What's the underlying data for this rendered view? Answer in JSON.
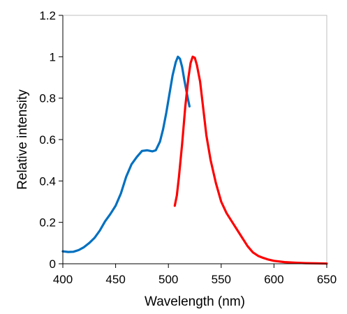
{
  "chart_data": {
    "type": "line",
    "title": "",
    "xlabel": "Wavelength (nm)",
    "ylabel": "Relative intensity",
    "xlim": [
      400,
      650
    ],
    "ylim": [
      0,
      1.2
    ],
    "xticks": [
      400,
      450,
      500,
      550,
      600,
      650
    ],
    "xtick_labels": [
      "400",
      "450",
      "500",
      "550",
      "600",
      "650"
    ],
    "yticks": [
      0,
      0.2,
      0.4,
      0.6,
      0.8,
      1.0,
      1.2
    ],
    "ytick_labels": [
      "0",
      "0.2",
      "0.4",
      "0.6",
      "0.8",
      "1",
      "1.2"
    ],
    "grid": false,
    "legend": "none",
    "series": [
      {
        "color": "#0070c0",
        "points": [
          [
            400,
            0.06
          ],
          [
            405,
            0.057
          ],
          [
            410,
            0.058
          ],
          [
            415,
            0.066
          ],
          [
            420,
            0.08
          ],
          [
            425,
            0.1
          ],
          [
            430,
            0.125
          ],
          [
            435,
            0.16
          ],
          [
            440,
            0.205
          ],
          [
            445,
            0.24
          ],
          [
            450,
            0.28
          ],
          [
            455,
            0.34
          ],
          [
            460,
            0.42
          ],
          [
            465,
            0.48
          ],
          [
            470,
            0.515
          ],
          [
            475,
            0.545
          ],
          [
            480,
            0.548
          ],
          [
            485,
            0.543
          ],
          [
            488,
            0.548
          ],
          [
            492,
            0.59
          ],
          [
            495,
            0.65
          ],
          [
            498,
            0.73
          ],
          [
            501,
            0.82
          ],
          [
            504,
            0.91
          ],
          [
            507,
            0.975
          ],
          [
            509,
            1.0
          ],
          [
            511,
            0.99
          ],
          [
            513,
            0.95
          ],
          [
            515,
            0.89
          ],
          [
            518,
            0.81
          ],
          [
            520,
            0.76
          ]
        ]
      },
      {
        "color": "#ff0000",
        "points": [
          [
            506,
            0.28
          ],
          [
            508,
            0.33
          ],
          [
            510,
            0.42
          ],
          [
            513,
            0.58
          ],
          [
            516,
            0.76
          ],
          [
            519,
            0.9
          ],
          [
            521,
            0.97
          ],
          [
            523,
            1.0
          ],
          [
            525,
            0.995
          ],
          [
            527,
            0.96
          ],
          [
            530,
            0.88
          ],
          [
            533,
            0.75
          ],
          [
            536,
            0.62
          ],
          [
            540,
            0.5
          ],
          [
            545,
            0.39
          ],
          [
            550,
            0.3
          ],
          [
            555,
            0.245
          ],
          [
            560,
            0.205
          ],
          [
            565,
            0.165
          ],
          [
            570,
            0.125
          ],
          [
            575,
            0.085
          ],
          [
            580,
            0.055
          ],
          [
            585,
            0.038
          ],
          [
            590,
            0.028
          ],
          [
            595,
            0.02
          ],
          [
            600,
            0.014
          ],
          [
            610,
            0.008
          ],
          [
            620,
            0.005
          ],
          [
            630,
            0.003
          ],
          [
            640,
            0.002
          ],
          [
            650,
            0.001
          ]
        ]
      }
    ]
  }
}
